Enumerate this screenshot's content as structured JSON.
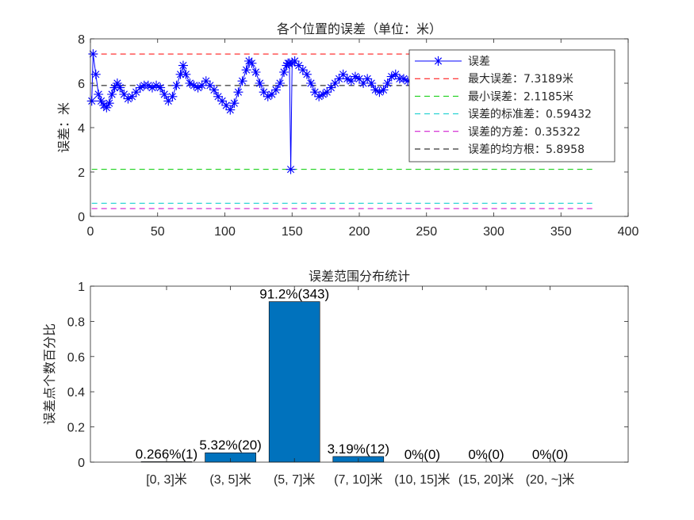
{
  "chart_data": [
    {
      "type": "line",
      "title": "各个位置的误差（单位：米）",
      "xlabel": "",
      "ylabel": "误差：米",
      "xlim": [
        0,
        400
      ],
      "ylim": [
        0,
        8
      ],
      "xticks": [
        "0",
        "50",
        "100",
        "150",
        "200",
        "250",
        "300",
        "350",
        "400"
      ],
      "yticks": [
        "0",
        "2",
        "4",
        "6",
        "8"
      ],
      "grid": false,
      "legend_position": "top-right",
      "series": [
        {
          "name": "误差",
          "color": "#0000ff",
          "marker": "*",
          "points": [
            [
              1,
              5.2
            ],
            [
              2,
              7.3189
            ],
            [
              4,
              6.4
            ],
            [
              6,
              5.5
            ],
            [
              8,
              5.2
            ],
            [
              10,
              5.0
            ],
            [
              12,
              4.9
            ],
            [
              14,
              5.1
            ],
            [
              16,
              5.5
            ],
            [
              18,
              5.8
            ],
            [
              20,
              6.0
            ],
            [
              22,
              5.8
            ],
            [
              25,
              5.5
            ],
            [
              28,
              5.3
            ],
            [
              31,
              5.4
            ],
            [
              34,
              5.6
            ],
            [
              37,
              5.8
            ],
            [
              40,
              5.9
            ],
            [
              43,
              5.9
            ],
            [
              46,
              5.8
            ],
            [
              49,
              5.9
            ],
            [
              52,
              5.8
            ],
            [
              55,
              5.5
            ],
            [
              58,
              5.2
            ],
            [
              61,
              5.4
            ],
            [
              64,
              5.9
            ],
            [
              67,
              6.4
            ],
            [
              69,
              6.8
            ],
            [
              71,
              6.4
            ],
            [
              74,
              6.0
            ],
            [
              77,
              5.9
            ],
            [
              80,
              5.8
            ],
            [
              83,
              5.9
            ],
            [
              86,
              6.1
            ],
            [
              89,
              5.9
            ],
            [
              92,
              5.7
            ],
            [
              95,
              5.4
            ],
            [
              98,
              5.2
            ],
            [
              101,
              5.0
            ],
            [
              104,
              4.8
            ],
            [
              107,
              5.1
            ],
            [
              110,
              5.6
            ],
            [
              113,
              6.1
            ],
            [
              116,
              6.6
            ],
            [
              118,
              7.0
            ],
            [
              120,
              6.9
            ],
            [
              123,
              6.5
            ],
            [
              126,
              6.0
            ],
            [
              129,
              5.6
            ],
            [
              132,
              5.4
            ],
            [
              135,
              5.5
            ],
            [
              138,
              5.7
            ],
            [
              141,
              6.0
            ],
            [
              144,
              6.5
            ],
            [
              146,
              6.8
            ],
            [
              147,
              6.9
            ],
            [
              148,
              6.9
            ],
            [
              149,
              2.1185
            ],
            [
              150,
              6.9
            ],
            [
              152,
              7.0
            ],
            [
              155,
              6.8
            ],
            [
              158,
              6.6
            ],
            [
              161,
              6.4
            ],
            [
              164,
              6.0
            ],
            [
              167,
              5.6
            ],
            [
              170,
              5.4
            ],
            [
              173,
              5.5
            ],
            [
              176,
              5.6
            ],
            [
              179,
              5.8
            ],
            [
              182,
              6.0
            ],
            [
              185,
              6.2
            ],
            [
              188,
              6.4
            ],
            [
              191,
              6.2
            ],
            [
              194,
              6.1
            ],
            [
              197,
              6.3
            ],
            [
              200,
              6.2
            ],
            [
              203,
              6.0
            ],
            [
              206,
              6.2
            ],
            [
              209,
              6.0
            ],
            [
              212,
              5.7
            ],
            [
              215,
              5.6
            ],
            [
              218,
              5.7
            ],
            [
              221,
              6.0
            ],
            [
              224,
              6.3
            ],
            [
              227,
              6.4
            ],
            [
              230,
              6.2
            ],
            [
              233,
              6.2
            ],
            [
              236,
              6.1
            ]
          ]
        },
        {
          "name": "最大误差：7.3189米",
          "color": "#ff0000",
          "dash": true,
          "y": 7.3189,
          "x_range": [
            1,
            376
          ]
        },
        {
          "name": "最小误差：2.1185米",
          "color": "#00cc00",
          "dash": true,
          "y": 2.1185,
          "x_range": [
            1,
            376
          ]
        },
        {
          "name": "误差的标准差：0.59432",
          "color": "#00cccc",
          "dash": true,
          "y": 0.59432,
          "x_range": [
            1,
            376
          ]
        },
        {
          "name": "误差的方差：0.35322",
          "color": "#cc00cc",
          "dash": true,
          "y": 0.35322,
          "x_range": [
            1,
            376
          ]
        },
        {
          "name": "误差的均方根：5.8958",
          "color": "#000000",
          "dash": true,
          "y": 5.8958,
          "x_range": [
            1,
            376
          ]
        }
      ]
    },
    {
      "type": "bar",
      "title": "误差范围分布统计",
      "xlabel": "",
      "ylabel": "误差点个数百分比",
      "ylim": [
        0,
        1
      ],
      "yticks": [
        "0",
        "0.2",
        "0.4",
        "0.6",
        "0.8",
        "1"
      ],
      "categories": [
        "[0, 3]米",
        "(3, 5]米",
        "(5, 7]米",
        "(7, 10]米",
        "(10, 15]米",
        "(15, 20]米",
        "(20, ~]米"
      ],
      "values": [
        0.00266,
        0.0532,
        0.912,
        0.0319,
        0,
        0,
        0
      ],
      "data_labels": [
        "0.266%(1)",
        "5.32%(20)",
        "91.2%(343)",
        "3.19%(12)",
        "0%(0)",
        "0%(0)",
        "0%(0)"
      ],
      "bar_color": "#0072bd"
    }
  ]
}
